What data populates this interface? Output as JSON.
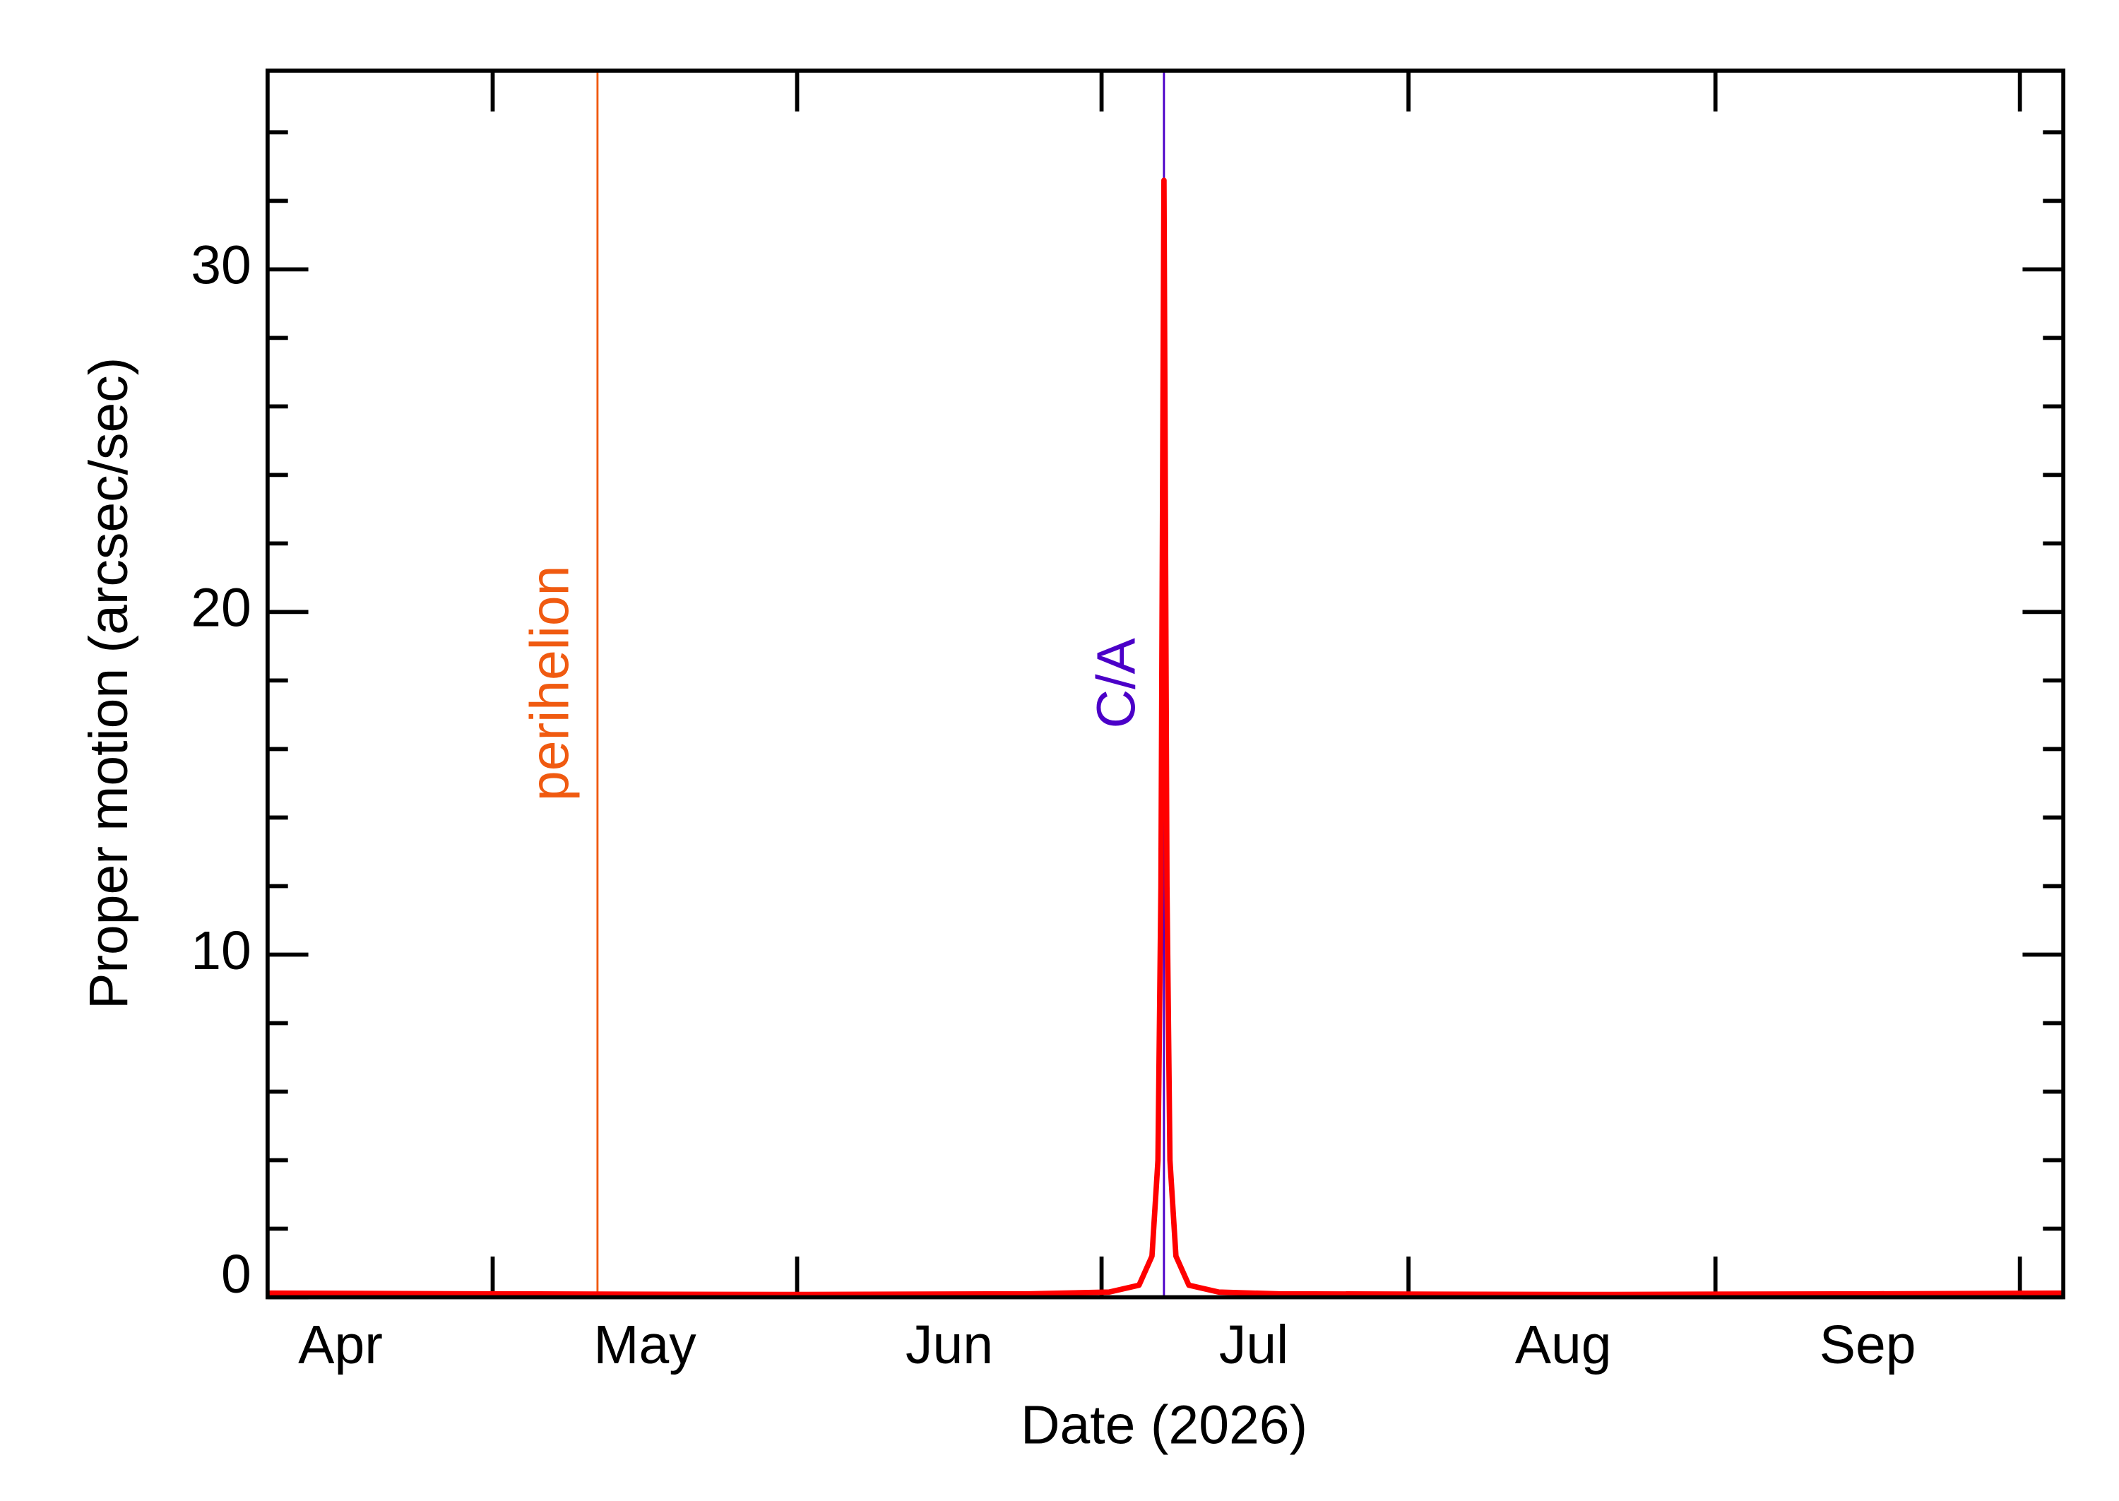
{
  "chart_data": {
    "type": "line",
    "x_label": "Date (2026)",
    "y_label": "Proper motion (arcsec/sec)",
    "x": [
      98.7,
      120,
      150,
      175,
      183,
      186,
      187.3,
      187.9,
      188.2,
      188.4,
      188.5,
      188.6,
      188.8,
      189.1,
      189.7,
      191,
      194,
      200,
      230,
      260,
      278.6
    ],
    "series": [
      {
        "color": "#ff0000",
        "values": [
          0.12,
          0.1,
          0.08,
          0.1,
          0.15,
          0.35,
          1.2,
          4,
          12,
          26,
          32.6,
          26,
          12,
          4,
          1.2,
          0.35,
          0.15,
          0.1,
          0.08,
          0.1,
          0.12
        ]
      }
    ],
    "xlim": [
      98.7,
      278.6
    ],
    "xticks": [
      {
        "value": 106,
        "label": "Apr"
      },
      {
        "value": 136.5,
        "label": "May"
      },
      {
        "value": 167,
        "label": "Jun"
      },
      {
        "value": 197.5,
        "label": "Jul"
      },
      {
        "value": 228.5,
        "label": "Aug"
      },
      {
        "value": 259,
        "label": "Sep"
      }
    ],
    "ylim": [
      0,
      35.8
    ],
    "yticks": [
      0,
      10,
      20,
      30
    ],
    "markers": [
      {
        "label": "perihelion",
        "x": 131.75,
        "color": "#f05a10"
      },
      {
        "label": "C/A",
        "x": 188.5,
        "color": "#4b00c8"
      }
    ]
  }
}
